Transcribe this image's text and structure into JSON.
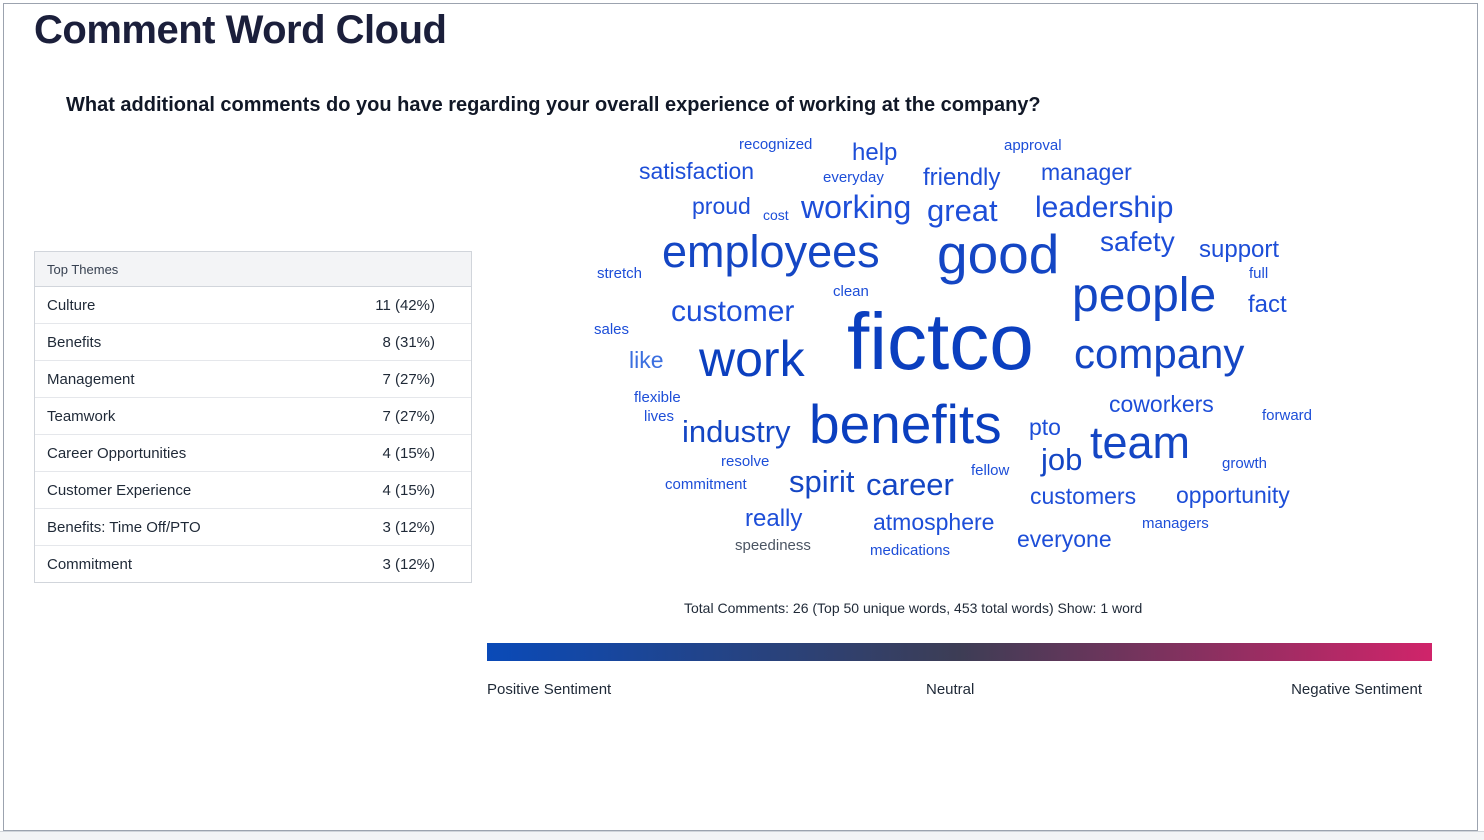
{
  "page": {
    "title": "Comment Word Cloud",
    "question": "What additional comments do you have regarding your overall experience of working at the company?"
  },
  "themes": {
    "header": "Top Themes",
    "rows": [
      {
        "name": "Culture",
        "value": "11 (42%)"
      },
      {
        "name": "Benefits",
        "value": "8 (31%)"
      },
      {
        "name": "Management",
        "value": "7 (27%)"
      },
      {
        "name": "Teamwork",
        "value": "7 (27%)"
      },
      {
        "name": "Career Opportunities",
        "value": "4 (15%)"
      },
      {
        "name": "Customer Experience",
        "value": "4 (15%)"
      },
      {
        "name": "Benefits: Time Off/PTO",
        "value": "3 (12%)"
      },
      {
        "name": "Commitment",
        "value": "3 (12%)"
      }
    ]
  },
  "word_cloud": {
    "words": [
      {
        "text": "recognized",
        "color": "#1d4ed8"
      },
      {
        "text": "help",
        "color": "#1d4ed8"
      },
      {
        "text": "approval",
        "color": "#1d4ed8"
      },
      {
        "text": "satisfaction",
        "color": "#1d4ed8"
      },
      {
        "text": "everyday",
        "color": "#1d4ed8"
      },
      {
        "text": "friendly",
        "color": "#1d4ed8"
      },
      {
        "text": "manager",
        "color": "#1d4ed8"
      },
      {
        "text": "proud",
        "color": "#1d4ed8"
      },
      {
        "text": "cost",
        "color": "#1d4ed8"
      },
      {
        "text": "working",
        "color": "#1d4ed8"
      },
      {
        "text": "great",
        "color": "#1d4ed8"
      },
      {
        "text": "leadership",
        "color": "#1d4ed8"
      },
      {
        "text": "employees",
        "color": "#1446c4"
      },
      {
        "text": "good",
        "color": "#1446c4"
      },
      {
        "text": "safety",
        "color": "#1d4ed8"
      },
      {
        "text": "support",
        "color": "#1d4ed8"
      },
      {
        "text": "stretch",
        "color": "#1d4ed8"
      },
      {
        "text": "full",
        "color": "#1d4ed8"
      },
      {
        "text": "clean",
        "color": "#1d4ed8"
      },
      {
        "text": "people",
        "color": "#1446c4"
      },
      {
        "text": "customer",
        "color": "#1d4ed8"
      },
      {
        "text": "fact",
        "color": "#1d4ed8"
      },
      {
        "text": "sales",
        "color": "#1d4ed8"
      },
      {
        "text": "fictco",
        "color": "#0b3fbf"
      },
      {
        "text": "like",
        "color": "#3b6fe0"
      },
      {
        "text": "work",
        "color": "#0b3fbf"
      },
      {
        "text": "company",
        "color": "#1446c4"
      },
      {
        "text": "flexible",
        "color": "#1d4ed8"
      },
      {
        "text": "lives",
        "color": "#1d4ed8"
      },
      {
        "text": "coworkers",
        "color": "#1d4ed8"
      },
      {
        "text": "forward",
        "color": "#1d4ed8"
      },
      {
        "text": "industry",
        "color": "#1446c4"
      },
      {
        "text": "benefits",
        "color": "#0b3fbf"
      },
      {
        "text": "pto",
        "color": "#1d4ed8"
      },
      {
        "text": "team",
        "color": "#1446c4"
      },
      {
        "text": "job",
        "color": "#1446c4"
      },
      {
        "text": "resolve",
        "color": "#1d4ed8"
      },
      {
        "text": "fellow",
        "color": "#1d4ed8"
      },
      {
        "text": "growth",
        "color": "#1d4ed8"
      },
      {
        "text": "commitment",
        "color": "#1d4ed8"
      },
      {
        "text": "spirit",
        "color": "#1446c4"
      },
      {
        "text": "career",
        "color": "#1446c4"
      },
      {
        "text": "customers",
        "color": "#1d4ed8"
      },
      {
        "text": "opportunity",
        "color": "#1d4ed8"
      },
      {
        "text": "really",
        "color": "#1d4ed8"
      },
      {
        "text": "atmosphere",
        "color": "#1d4ed8"
      },
      {
        "text": "managers",
        "color": "#1d4ed8"
      },
      {
        "text": "everyone",
        "color": "#1d4ed8"
      },
      {
        "text": "speediness",
        "color": "#4b5563"
      },
      {
        "text": "medications",
        "color": "#1d4ed8"
      }
    ]
  },
  "stats": "Total Comments: 26 (Top 50 unique words, 453 total words) Show: 1 word",
  "sentiment": {
    "positive_label": "Positive Sentiment",
    "neutral_label": "Neutral",
    "negative_label": "Negative Sentiment",
    "positive_color": "#0a4ab8",
    "neutral_color": "#3d3d55",
    "negative_color": "#d0246a"
  }
}
